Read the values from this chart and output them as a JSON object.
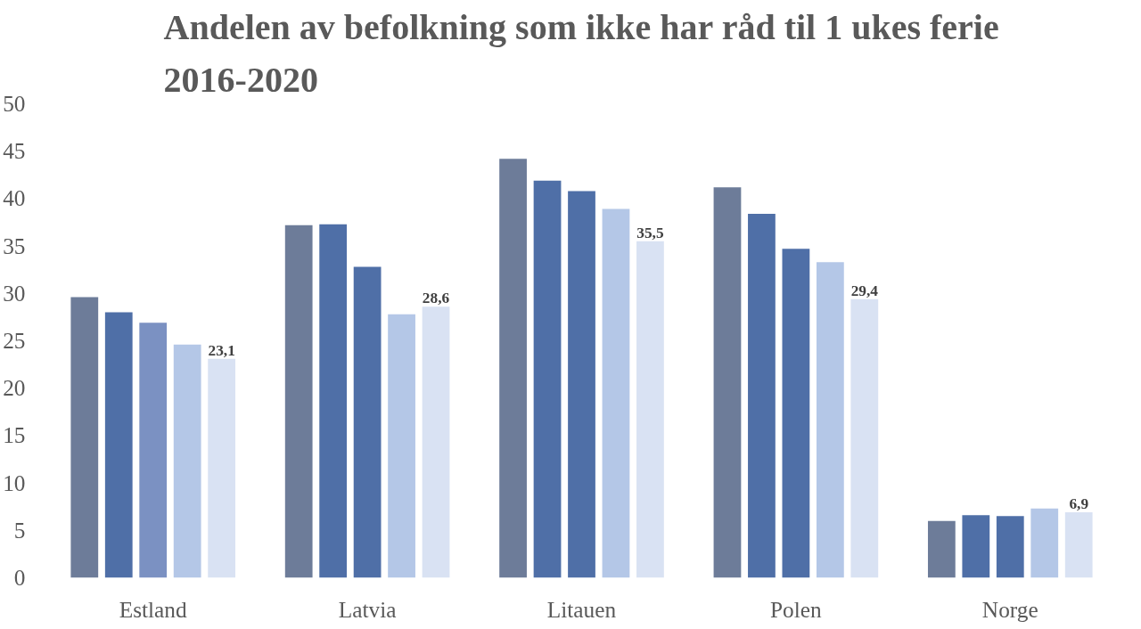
{
  "chart_data": {
    "type": "bar",
    "title": "Andelen av befolkning som ikke har råd til 1 ukes ferie\n2016-2020",
    "categories": [
      "Estland",
      "Latvia",
      "Litauen",
      "Polen",
      "Norge"
    ],
    "ylim": [
      0,
      50
    ],
    "yticks": [
      0,
      5,
      10,
      15,
      20,
      25,
      30,
      35,
      40,
      45,
      50
    ],
    "grid": false,
    "series": [
      {
        "color": "#6d7c99",
        "values": [
          29.6,
          37.2,
          44.2,
          41.2,
          6.0
        ]
      },
      {
        "color": "#4f6fa7",
        "values": [
          28.0,
          37.3,
          41.9,
          38.4,
          6.6
        ]
      },
      {
        "colors": [
          "#7b91c2",
          "#4f6fa7",
          "#4f6fa7",
          "#4f6fa7",
          "#4f6fa7"
        ],
        "values": [
          26.9,
          32.8,
          40.8,
          34.7,
          6.5
        ]
      },
      {
        "color": "#b4c7e7",
        "values": [
          24.6,
          27.8,
          38.9,
          33.3,
          7.3
        ]
      },
      {
        "color": "#d9e2f3",
        "values": [
          23.1,
          28.6,
          35.5,
          29.4,
          6.9
        ],
        "value_labels": [
          "23,1",
          "28,6",
          "35,5",
          "29,4",
          "6,9"
        ]
      }
    ]
  }
}
